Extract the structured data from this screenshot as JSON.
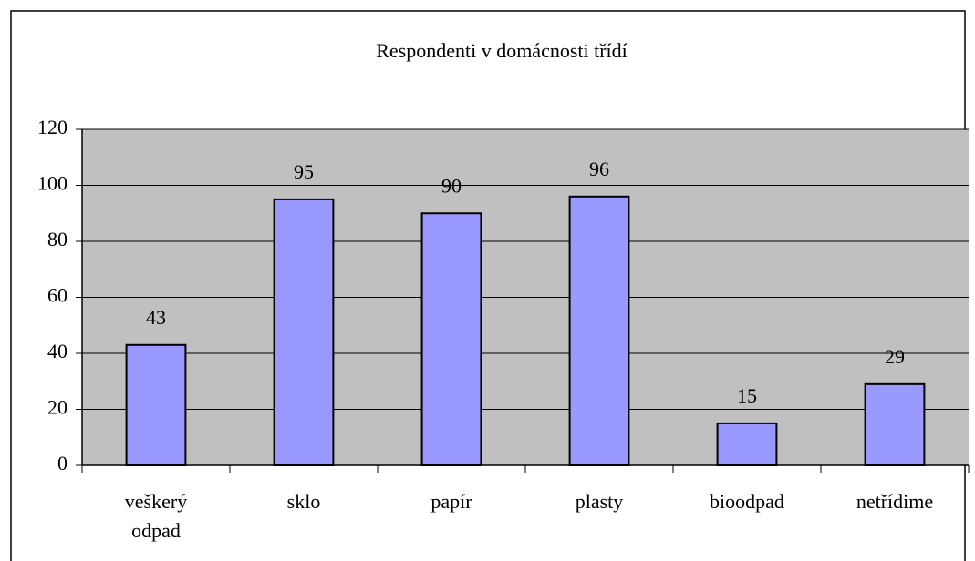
{
  "chart_data": {
    "type": "bar",
    "title": "Respondenti v domácnosti třídí",
    "categories": [
      "veškerý odpad",
      "sklo",
      "papír",
      "plasty",
      "bioodpad",
      "netřídime"
    ],
    "values": [
      43,
      95,
      90,
      96,
      15,
      29
    ],
    "color": "#9999ff",
    "ylim": [
      0,
      120
    ],
    "yticks": [
      0,
      20,
      40,
      60,
      80,
      100,
      120
    ],
    "grid": true
  }
}
